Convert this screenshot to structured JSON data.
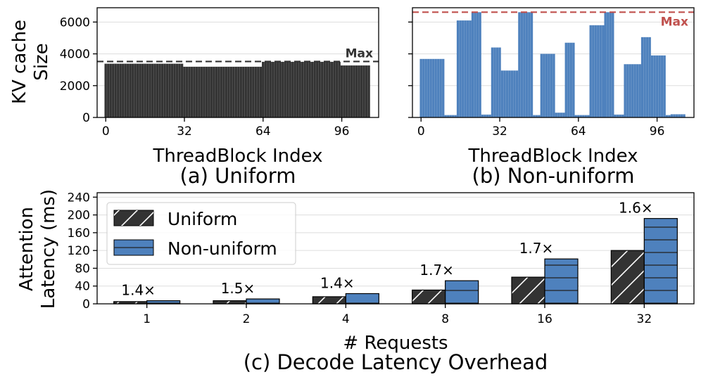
{
  "chart_data": [
    {
      "type": "bar",
      "id": "a",
      "caption": "(a) Uniform",
      "xlabel": "ThreadBlock Index",
      "ylabel": "KV cache\nSize",
      "ylabel_lines": [
        "KV cache",
        "Size"
      ],
      "x_ticks": [
        0,
        32,
        64,
        96
      ],
      "y_ticks": [
        0,
        2000,
        4000,
        6000
      ],
      "xlim": [
        -3.5,
        111
      ],
      "ylim": [
        0,
        6900
      ],
      "grid": "horizontal",
      "bar_color": "#333333",
      "max_line": {
        "value": 3520,
        "label": "Max",
        "color": "#333333"
      },
      "segments": [
        {
          "start": 0,
          "end": 31,
          "value": 3380
        },
        {
          "start": 32,
          "end": 63,
          "value": 3190
        },
        {
          "start": 64,
          "end": 95,
          "value": 3500
        },
        {
          "start": 96,
          "end": 107,
          "value": 3270
        }
      ]
    },
    {
      "type": "bar",
      "id": "b",
      "caption": "(b) Non-uniform",
      "xlabel": "ThreadBlock Index",
      "x_ticks": [
        0,
        32,
        64,
        96
      ],
      "y_ticks": [
        0,
        2000,
        4000,
        6000
      ],
      "xlim": [
        -3.5,
        111
      ],
      "ylim": [
        0,
        6900
      ],
      "grid": "horizontal",
      "bar_color": "#4e81bd",
      "max_line": {
        "value": 6620,
        "label": "Max",
        "color": "#c0504d"
      },
      "segments": [
        {
          "start": 0,
          "end": 9,
          "value": 3680
        },
        {
          "start": 10,
          "end": 14,
          "value": 150
        },
        {
          "start": 15,
          "end": 20,
          "value": 6100
        },
        {
          "start": 21,
          "end": 24,
          "value": 6620
        },
        {
          "start": 25,
          "end": 28,
          "value": 180
        },
        {
          "start": 29,
          "end": 32,
          "value": 4400
        },
        {
          "start": 33,
          "end": 39,
          "value": 2950
        },
        {
          "start": 40,
          "end": 45,
          "value": 6620
        },
        {
          "start": 46,
          "end": 48,
          "value": 150
        },
        {
          "start": 49,
          "end": 54,
          "value": 4000
        },
        {
          "start": 55,
          "end": 58,
          "value": 300
        },
        {
          "start": 59,
          "end": 62,
          "value": 4700
        },
        {
          "start": 63,
          "end": 68,
          "value": 150
        },
        {
          "start": 69,
          "end": 74,
          "value": 5800
        },
        {
          "start": 75,
          "end": 78,
          "value": 6620
        },
        {
          "start": 79,
          "end": 82,
          "value": 180
        },
        {
          "start": 83,
          "end": 89,
          "value": 3350
        },
        {
          "start": 90,
          "end": 93,
          "value": 5050
        },
        {
          "start": 94,
          "end": 99,
          "value": 3900
        },
        {
          "start": 100,
          "end": 101,
          "value": 150
        },
        {
          "start": 102,
          "end": 107,
          "value": 200
        }
      ]
    },
    {
      "type": "bar",
      "id": "c",
      "caption": "(c) Decode Latency Overhead",
      "xlabel": "# Requests",
      "ylabel": "Attention\nLatency (ms)",
      "ylabel_lines": [
        "Attention",
        "Latency (ms)"
      ],
      "categories": [
        "1",
        "2",
        "4",
        "8",
        "16",
        "32"
      ],
      "y_ticks": [
        0,
        40,
        80,
        120,
        160,
        200,
        240
      ],
      "ylim": [
        0,
        250
      ],
      "grid": "horizontal",
      "legend": "top-left",
      "series": [
        {
          "name": "Uniform",
          "color": "#333333",
          "hatch": "diagonal",
          "values": [
            5,
            7,
            16,
            31,
            60,
            120
          ]
        },
        {
          "name": "Non-uniform",
          "color": "#4e81bd",
          "hatch": "horizontal",
          "values": [
            7,
            11,
            23,
            52,
            101,
            192
          ]
        }
      ],
      "annotations": [
        "1.4×",
        "1.5×",
        "1.4×",
        "1.7×",
        "1.7×",
        "1.6×"
      ]
    }
  ]
}
